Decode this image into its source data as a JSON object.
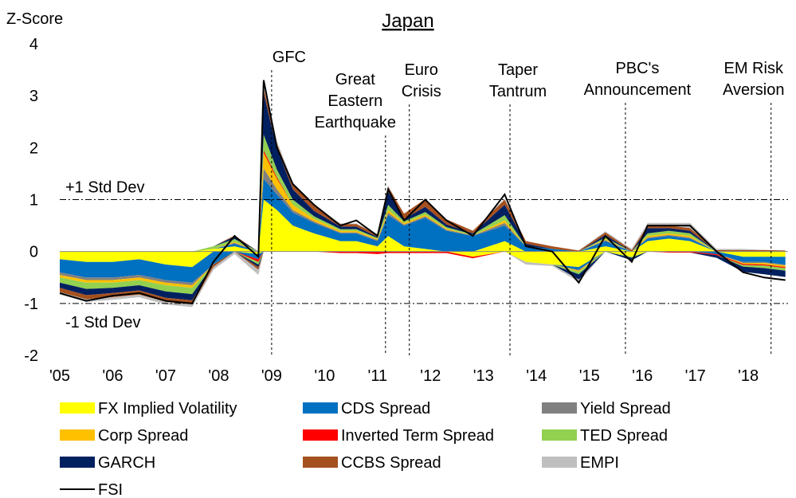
{
  "chart_data": {
    "type": "stacked_area",
    "title": "Japan",
    "y_label": "Z-Score",
    "x": [
      2005,
      2005.5,
      2006,
      2006.5,
      2007,
      2007.5,
      2007.9,
      2008.3,
      2008.75,
      2008.85,
      2009.1,
      2009.4,
      2009.8,
      2010.3,
      2010.6,
      2011.0,
      2011.2,
      2011.5,
      2011.9,
      2012.3,
      2012.8,
      2013.4,
      2013.8,
      2014.3,
      2014.8,
      2015.3,
      2015.8,
      2016.1,
      2016.5,
      2016.9,
      2017.4,
      2017.9,
      2018.3,
      2018.7
    ],
    "xlim": [
      2005,
      2018.75
    ],
    "xticks": [
      {
        "value": 2005,
        "label": "'05"
      },
      {
        "value": 2006,
        "label": "'06"
      },
      {
        "value": 2007,
        "label": "'07"
      },
      {
        "value": 2008,
        "label": "'08"
      },
      {
        "value": 2009,
        "label": "'09"
      },
      {
        "value": 2010,
        "label": "'10"
      },
      {
        "value": 2011,
        "label": "'11"
      },
      {
        "value": 2012,
        "label": "'12"
      },
      {
        "value": 2013,
        "label": "'13"
      },
      {
        "value": 2014,
        "label": "'14"
      },
      {
        "value": 2015,
        "label": "'15"
      },
      {
        "value": 2016,
        "label": "'16"
      },
      {
        "value": 2017,
        "label": "'17"
      },
      {
        "value": 2018,
        "label": "'18"
      }
    ],
    "ylim": [
      -2,
      4
    ],
    "yticks": [
      -2,
      -1,
      0,
      1,
      2,
      3,
      4
    ],
    "reference_lines": [
      {
        "value": 1,
        "label": "+1 Std Dev"
      },
      {
        "value": -1,
        "label": "-1 Std Dev"
      }
    ],
    "annotations": [
      {
        "x": 2009.0,
        "lines": [
          "GFC"
        ]
      },
      {
        "x": 2011.15,
        "lines": [
          "Great",
          "Eastern",
          "Earthquake"
        ]
      },
      {
        "x": 2011.6,
        "lines": [
          "Euro",
          "Crisis"
        ]
      },
      {
        "x": 2013.5,
        "lines": [
          "Taper",
          "Tantrum"
        ]
      },
      {
        "x": 2015.68,
        "lines": [
          "PBC's",
          "Announcement"
        ]
      },
      {
        "x": 2018.43,
        "lines": [
          "EM Risk",
          "Aversion"
        ]
      }
    ],
    "series": [
      {
        "name": "FX Implied Volatility",
        "color": "#ffff00",
        "values": [
          -0.15,
          -0.2,
          -0.2,
          -0.15,
          -0.25,
          -0.3,
          0.05,
          0.1,
          -0.05,
          1.0,
          0.8,
          0.5,
          0.35,
          0.2,
          0.2,
          0.1,
          0.3,
          0.1,
          0.05,
          0.0,
          -0.1,
          0.2,
          -0.2,
          -0.25,
          -0.3,
          0.1,
          -0.1,
          0.2,
          0.25,
          0.2,
          0.0,
          -0.1,
          -0.1,
          -0.1
        ]
      },
      {
        "name": "CDS Spread",
        "color": "#0070c0",
        "values": [
          -0.25,
          -0.3,
          -0.3,
          -0.3,
          -0.3,
          -0.3,
          -0.25,
          0.05,
          -0.1,
          0.4,
          0.3,
          0.25,
          0.2,
          0.15,
          0.15,
          0.1,
          0.4,
          0.4,
          0.6,
          0.4,
          0.3,
          0.3,
          0.1,
          0.05,
          -0.05,
          0.1,
          0.0,
          0.05,
          0.05,
          0.05,
          -0.05,
          -0.1,
          -0.1,
          -0.15
        ]
      },
      {
        "name": "Yield Spread",
        "color": "#808080",
        "values": [
          -0.05,
          -0.05,
          -0.05,
          -0.05,
          -0.05,
          -0.05,
          0.0,
          0.02,
          0.0,
          0.2,
          0.1,
          0.05,
          0.03,
          0.02,
          0.02,
          0.02,
          0.05,
          0.02,
          0.03,
          0.02,
          0.01,
          0.05,
          0.0,
          0.0,
          -0.02,
          0.02,
          0.0,
          0.02,
          0.02,
          0.02,
          0.0,
          -0.02,
          -0.02,
          -0.02
        ]
      },
      {
        "name": "Corp Spread",
        "color": "#ffc000",
        "values": [
          -0.05,
          -0.05,
          -0.05,
          -0.05,
          -0.05,
          -0.05,
          0.0,
          0.02,
          0.0,
          0.3,
          0.2,
          0.1,
          0.05,
          0.03,
          0.03,
          0.02,
          0.05,
          0.03,
          0.03,
          0.02,
          0.0,
          0.05,
          0.0,
          0.0,
          -0.02,
          0.02,
          0.0,
          0.03,
          0.03,
          0.03,
          0.0,
          -0.02,
          -0.03,
          -0.03
        ]
      },
      {
        "name": "Inverted Term Spread",
        "color": "#ff0000",
        "values": [
          0,
          0,
          0,
          0,
          0,
          0,
          0,
          0,
          -0.05,
          0.05,
          0.03,
          0,
          0,
          -0.03,
          -0.03,
          -0.05,
          -0.03,
          -0.03,
          -0.03,
          -0.03,
          -0.03,
          0,
          0,
          0,
          0,
          0,
          0,
          0,
          -0.02,
          -0.02,
          -0.02,
          -0.02,
          -0.02,
          -0.02
        ]
      },
      {
        "name": "TED Spread",
        "color": "#92d050",
        "values": [
          -0.1,
          -0.12,
          -0.1,
          -0.1,
          -0.12,
          -0.12,
          0.05,
          0.05,
          -0.05,
          0.3,
          0.15,
          0.1,
          0.05,
          0.03,
          0.03,
          0.02,
          0.1,
          0.03,
          0.05,
          0.03,
          0.02,
          0.1,
          0.0,
          0.0,
          -0.05,
          0.03,
          -0.02,
          0.05,
          0.05,
          0.05,
          0.0,
          -0.03,
          -0.05,
          -0.05
        ]
      },
      {
        "name": "GARCH",
        "color": "#002060",
        "values": [
          -0.1,
          -0.12,
          -0.1,
          -0.1,
          -0.12,
          -0.12,
          0.0,
          0.05,
          -0.05,
          0.8,
          0.4,
          0.2,
          0.1,
          0.05,
          0.05,
          0.02,
          0.25,
          0.05,
          0.1,
          0.05,
          0.02,
          0.2,
          0.05,
          0.0,
          -0.1,
          0.05,
          -0.05,
          0.1,
          0.05,
          0.05,
          -0.05,
          -0.1,
          -0.12,
          -0.12
        ]
      },
      {
        "name": "CCBS Spread",
        "color": "#a5501f",
        "values": [
          -0.08,
          -0.08,
          -0.08,
          -0.08,
          -0.08,
          -0.08,
          -0.05,
          0.02,
          -0.05,
          0.1,
          0.1,
          0.1,
          0.1,
          0.05,
          0.05,
          0.05,
          0.1,
          0.1,
          0.15,
          0.1,
          0.05,
          0.1,
          0.05,
          0.05,
          0.02,
          0.05,
          0.03,
          0.05,
          0.05,
          0.05,
          0.03,
          0.03,
          0.03,
          0.02
        ]
      },
      {
        "name": "EMPI",
        "color": "#bfbfbf",
        "values": [
          -0.05,
          -0.05,
          -0.05,
          -0.05,
          -0.05,
          -0.05,
          -0.05,
          -0.05,
          -0.1,
          0.1,
          0.05,
          0.03,
          0.02,
          0.01,
          0.01,
          0.01,
          0.02,
          0,
          0,
          0,
          0,
          0.02,
          -0.05,
          -0.03,
          -0.05,
          0.02,
          0.02,
          0.05,
          0.05,
          0.1,
          0.02,
          0.02,
          0,
          0
        ]
      },
      {
        "name": "FSI",
        "color": "#000000",
        "type": "line",
        "values": [
          -0.8,
          -0.95,
          -0.85,
          -0.8,
          -0.95,
          -1.0,
          -0.2,
          0.3,
          -0.1,
          3.3,
          2.0,
          1.3,
          0.9,
          0.5,
          0.6,
          0.3,
          1.2,
          0.6,
          1.0,
          0.6,
          0.3,
          1.1,
          0.1,
          0.0,
          -0.6,
          0.3,
          -0.2,
          0.5,
          0.5,
          0.5,
          0.0,
          -0.4,
          -0.5,
          -0.55
        ]
      }
    ]
  }
}
